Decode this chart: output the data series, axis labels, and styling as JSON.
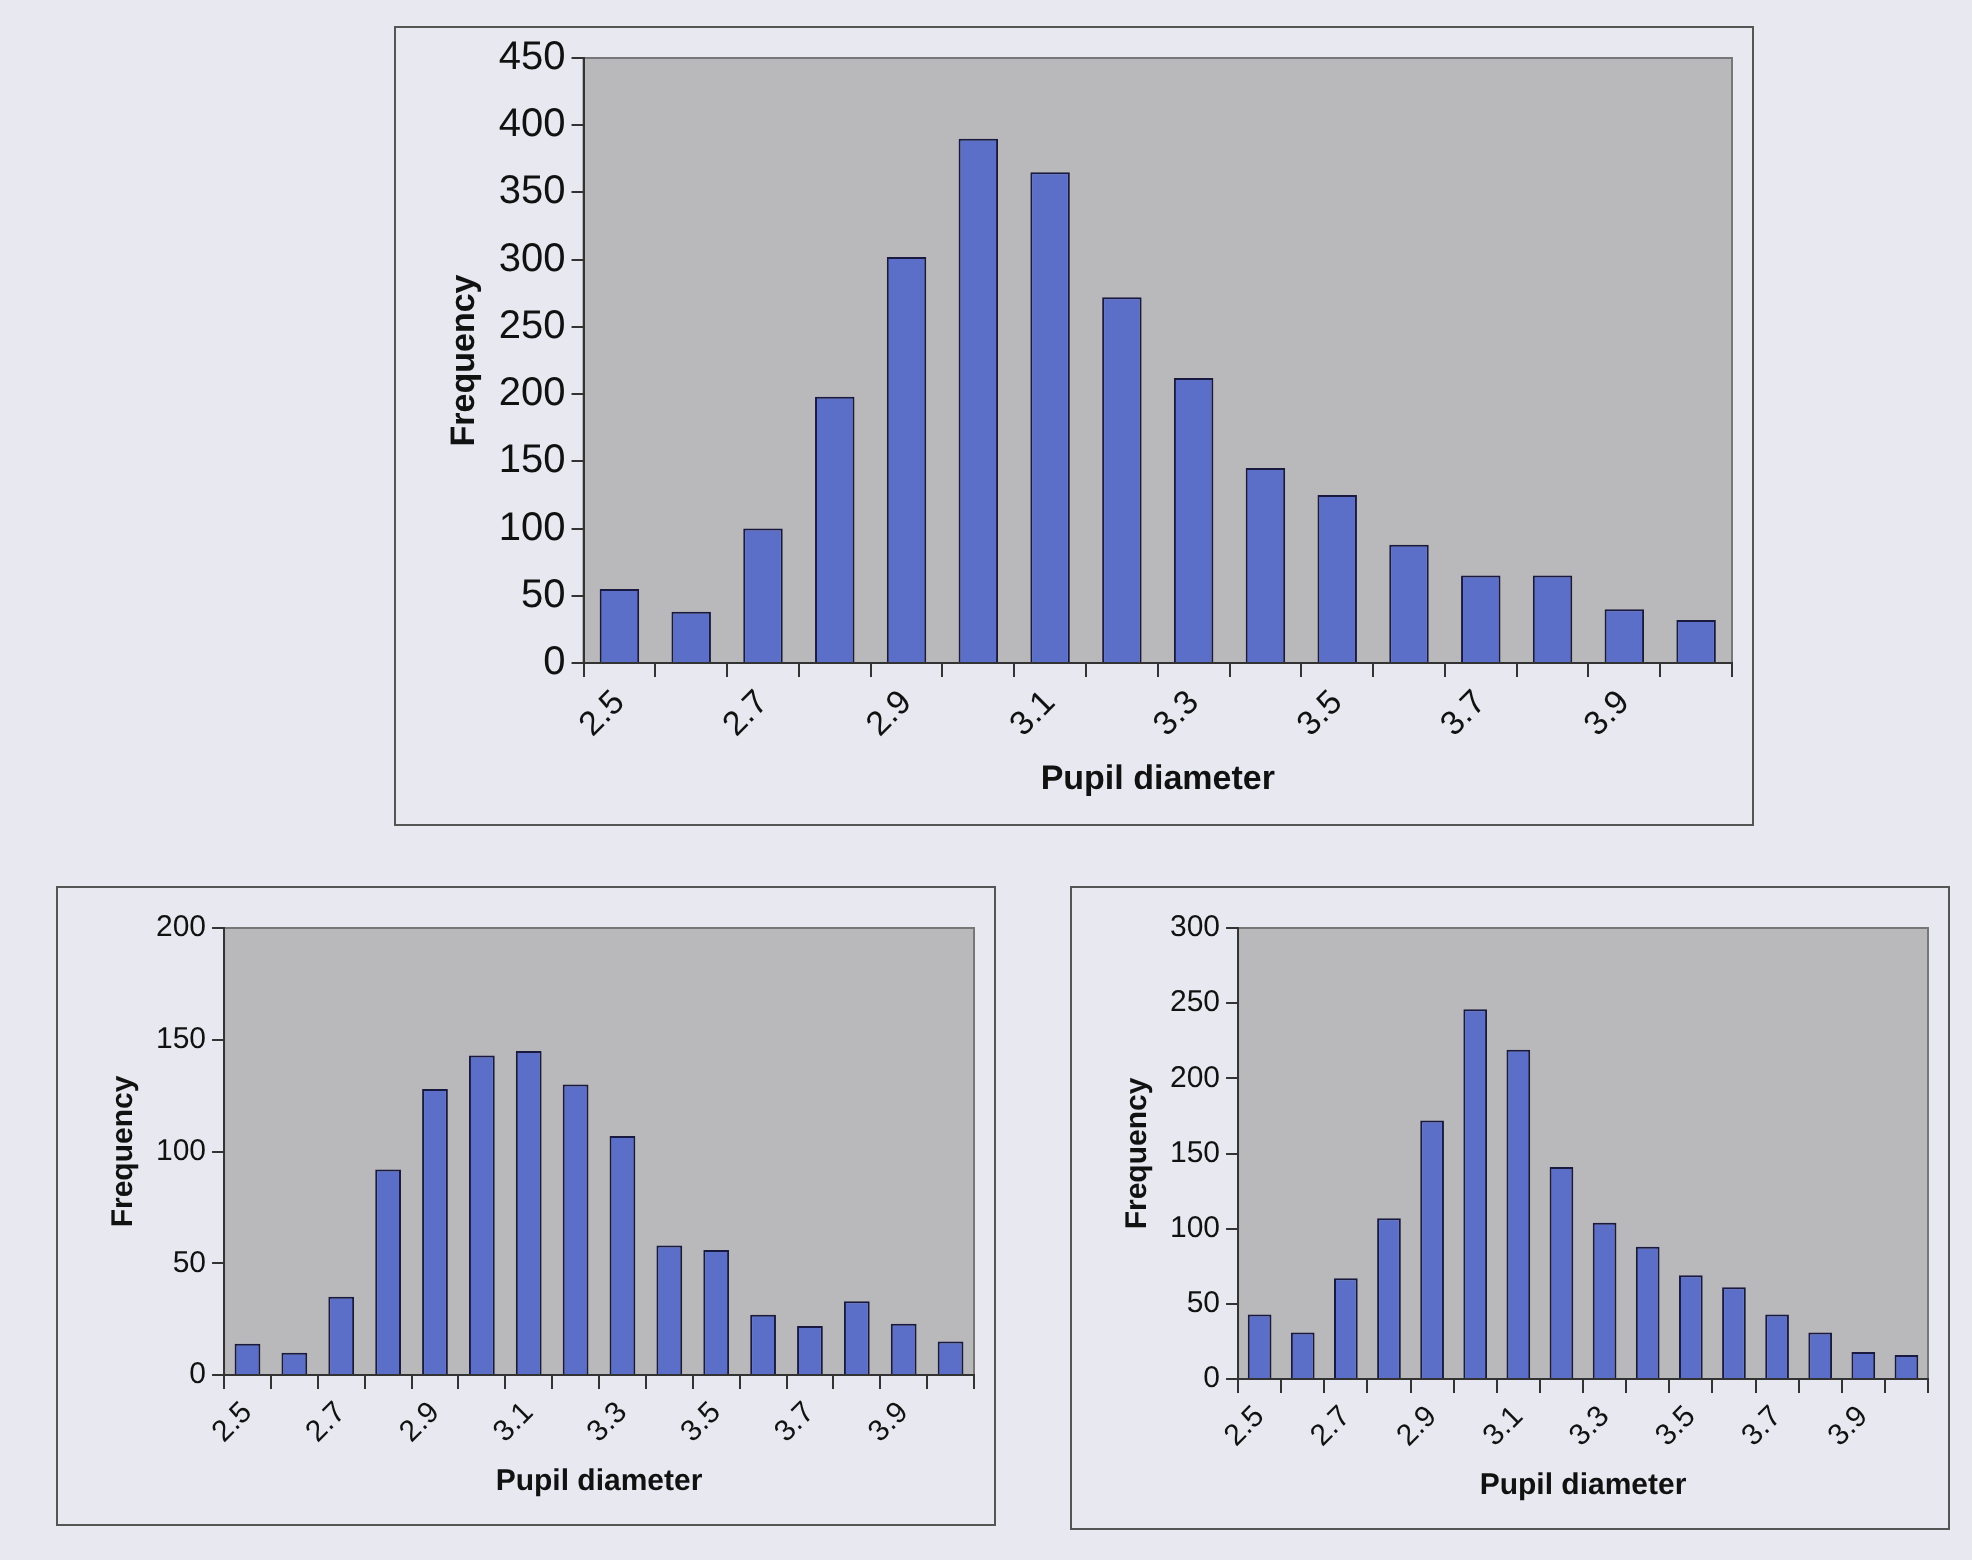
{
  "chart_data": [
    {
      "type": "bar",
      "categories": [
        "2.5",
        null,
        "2.7",
        null,
        "2.9",
        null,
        "3.1",
        null,
        "3.3",
        null,
        "3.5",
        null,
        "3.7",
        null,
        "3.9",
        null
      ],
      "values": [
        55,
        38,
        100,
        198,
        302,
        390,
        365,
        272,
        212,
        145,
        125,
        88,
        65,
        65,
        40,
        32
      ],
      "color": "#5b6fc8",
      "xlabel": "Pupil diameter",
      "ylabel": "Frequency",
      "ylim": [
        0,
        450
      ],
      "yticks": [
        0,
        50,
        100,
        150,
        200,
        250,
        300,
        350,
        400,
        450
      ]
    },
    {
      "type": "bar",
      "categories": [
        "2.5",
        null,
        "2.7",
        null,
        "2.9",
        null,
        "3.1",
        null,
        "3.3",
        null,
        "3.5",
        null,
        "3.7",
        null,
        "3.9",
        null
      ],
      "values": [
        14,
        10,
        35,
        92,
        128,
        143,
        145,
        130,
        107,
        58,
        56,
        27,
        22,
        33,
        23,
        15
      ],
      "color": "#5b6fc8",
      "xlabel": "Pupil diameter",
      "ylabel": "Frequency",
      "ylim": [
        0,
        200
      ],
      "yticks": [
        0,
        50,
        100,
        150,
        200
      ]
    },
    {
      "type": "bar",
      "categories": [
        "2.5",
        null,
        "2.7",
        null,
        "2.9",
        null,
        "3.1",
        null,
        "3.3",
        null,
        "3.5",
        null,
        "3.7",
        null,
        "3.9",
        null
      ],
      "values": [
        43,
        31,
        67,
        107,
        172,
        246,
        219,
        141,
        104,
        88,
        69,
        61,
        43,
        31,
        18,
        16
      ],
      "color": "#5b6fc8",
      "xlabel": "Pupil diameter",
      "ylabel": "Frequency",
      "ylim": [
        0,
        300
      ],
      "yticks": [
        0,
        50,
        100,
        150,
        200,
        250,
        300
      ]
    }
  ]
}
